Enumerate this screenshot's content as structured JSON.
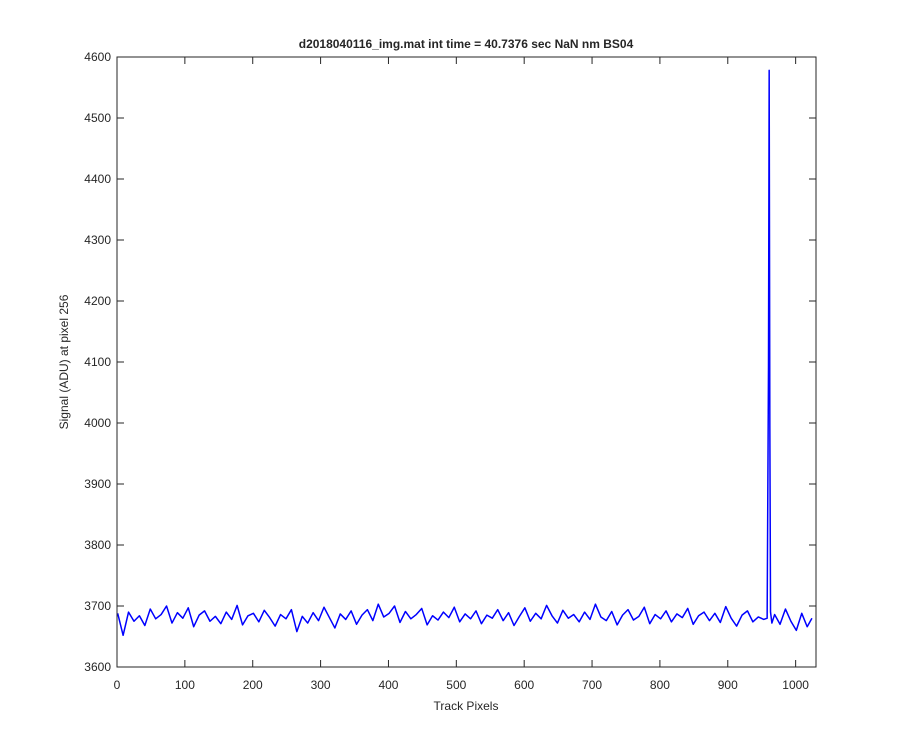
{
  "chart_data": {
    "type": "line",
    "title": "d2018040116_img.mat int time = 40.7376 sec  NaN nm BS04",
    "x_label": "Track Pixels",
    "y_label": "Signal (ADU) at pixel 256",
    "color": "#0000ff",
    "xlim": [
      0,
      1030
    ],
    "ylim": [
      3600,
      4600
    ],
    "xticks": [
      0,
      100,
      200,
      300,
      400,
      500,
      600,
      700,
      800,
      900,
      1000
    ],
    "yticks": [
      3600,
      3700,
      3800,
      3900,
      4000,
      4100,
      4200,
      4300,
      4400,
      4500,
      4600
    ],
    "grid": false,
    "x": [
      1,
      9,
      17,
      25,
      33,
      41,
      49,
      57,
      65,
      73,
      81,
      89,
      97,
      105,
      113,
      121,
      129,
      137,
      145,
      153,
      161,
      169,
      177,
      185,
      193,
      201,
      209,
      217,
      225,
      233,
      241,
      249,
      257,
      265,
      273,
      281,
      289,
      297,
      305,
      313,
      321,
      329,
      337,
      345,
      353,
      361,
      369,
      377,
      385,
      393,
      401,
      409,
      417,
      425,
      433,
      441,
      449,
      457,
      465,
      473,
      481,
      489,
      497,
      505,
      513,
      521,
      529,
      537,
      545,
      553,
      561,
      569,
      577,
      585,
      593,
      601,
      609,
      617,
      625,
      633,
      641,
      649,
      657,
      665,
      673,
      681,
      689,
      697,
      705,
      713,
      721,
      729,
      737,
      745,
      753,
      761,
      769,
      777,
      785,
      793,
      801,
      809,
      817,
      825,
      833,
      841,
      849,
      857,
      865,
      873,
      881,
      889,
      897,
      905,
      913,
      921,
      929,
      937,
      945,
      953,
      958,
      960,
      961,
      962,
      963,
      965,
      969,
      977,
      985,
      993,
      1001,
      1009,
      1017,
      1024
    ],
    "values": [
      3688,
      3652,
      3690,
      3675,
      3684,
      3668,
      3695,
      3679,
      3686,
      3700,
      3672,
      3689,
      3680,
      3697,
      3666,
      3685,
      3692,
      3675,
      3683,
      3671,
      3690,
      3678,
      3701,
      3669,
      3684,
      3688,
      3674,
      3693,
      3681,
      3667,
      3686,
      3679,
      3694,
      3658,
      3683,
      3672,
      3689,
      3676,
      3698,
      3681,
      3664,
      3687,
      3678,
      3692,
      3670,
      3685,
      3694,
      3676,
      3703,
      3682,
      3688,
      3700,
      3673,
      3691,
      3679,
      3686,
      3696,
      3669,
      3684,
      3677,
      3690,
      3681,
      3698,
      3674,
      3687,
      3679,
      3692,
      3671,
      3685,
      3680,
      3694,
      3676,
      3689,
      3668,
      3683,
      3697,
      3675,
      3688,
      3679,
      3701,
      3684,
      3672,
      3693,
      3680,
      3686,
      3674,
      3690,
      3678,
      3703,
      3682,
      3676,
      3691,
      3669,
      3685,
      3694,
      3677,
      3683,
      3698,
      3671,
      3686,
      3679,
      3692,
      3674,
      3687,
      3681,
      3696,
      3670,
      3684,
      3690,
      3676,
      3688,
      3673,
      3699,
      3680,
      3667,
      3685,
      3692,
      3674,
      3682,
      3678,
      3680,
      4095,
      4578,
      3990,
      3690,
      3672,
      3686,
      3670,
      3695,
      3675,
      3660,
      3688,
      3666,
      3680
    ]
  }
}
